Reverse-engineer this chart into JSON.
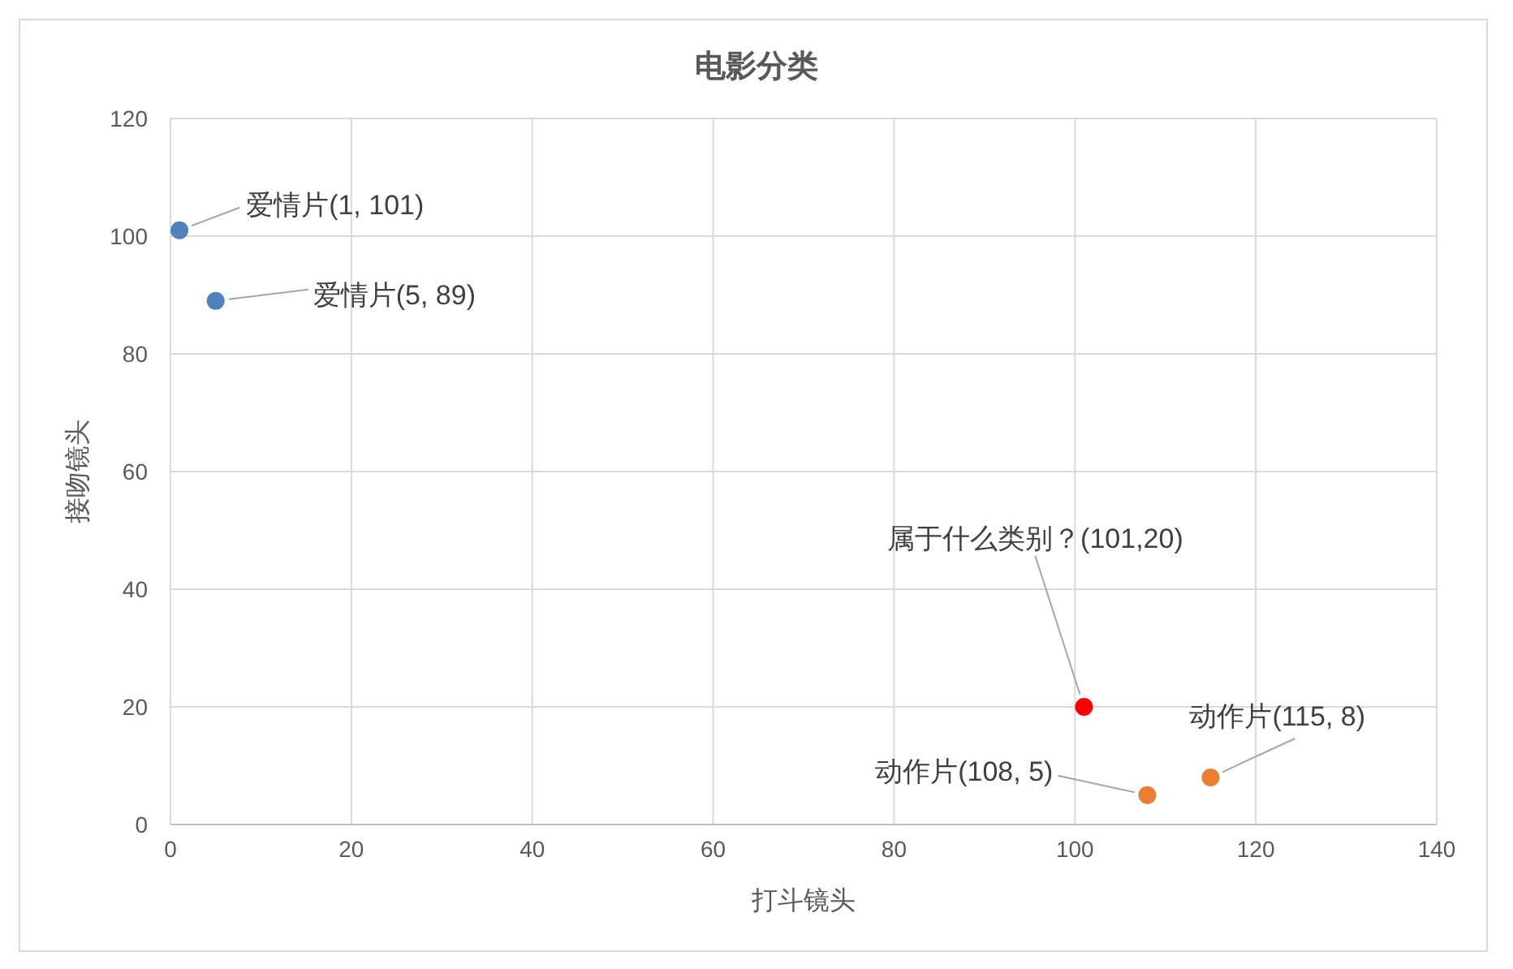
{
  "chart_data": {
    "type": "scatter",
    "title": "电影分类",
    "xlabel": "打斗镜头",
    "ylabel": "接吻镜头",
    "xlim": [
      0,
      140
    ],
    "xticks": [
      0,
      20,
      40,
      60,
      80,
      100,
      120,
      140
    ],
    "ylim": [
      0,
      120
    ],
    "yticks": [
      0,
      20,
      40,
      60,
      80,
      100,
      120
    ],
    "grid": true,
    "marker": "circle",
    "series": [
      {
        "color": "#4f81bd",
        "x": [
          1,
          5
        ],
        "values": [
          101,
          89
        ]
      },
      {
        "color": "#ff0000",
        "x": [
          101
        ],
        "values": [
          20
        ]
      },
      {
        "color": "#ed7d31",
        "x": [
          108,
          115
        ],
        "values": [
          5,
          8
        ]
      }
    ],
    "annotations": [
      {
        "text": "爱情片(1, 101)",
        "x": 1,
        "y": 101
      },
      {
        "text": "爱情片(5, 89)",
        "x": 5,
        "y": 89
      },
      {
        "text": "属于什么类别？(101,20)",
        "x": 101,
        "y": 20
      },
      {
        "text": "动作片(108, 5)",
        "x": 108,
        "y": 5
      },
      {
        "text": "动作片(115, 8)",
        "x": 115,
        "y": 8
      }
    ]
  }
}
